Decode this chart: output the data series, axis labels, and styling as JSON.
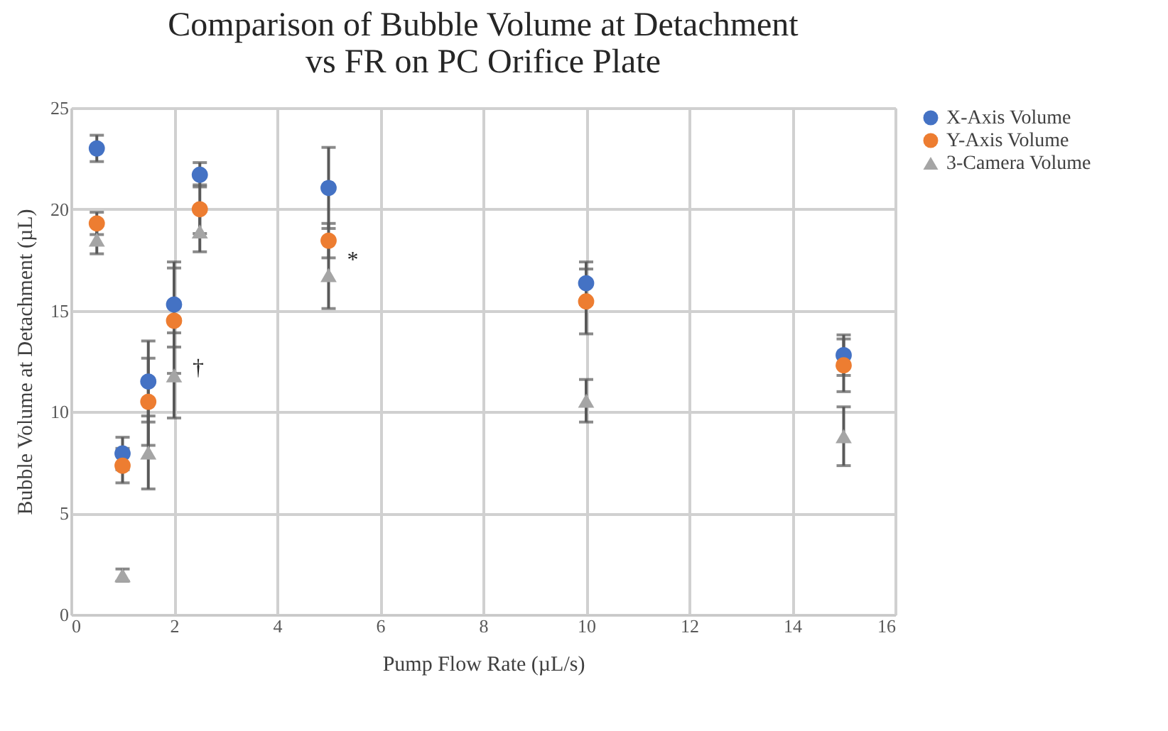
{
  "chart_data": {
    "type": "scatter",
    "title": "Comparison of Bubble Volume at Detachment vs FR on PC Orifice Plate",
    "xlabel": "Pump Flow Rate (µL/s)",
    "ylabel": "Bubble Volume at Detachment (µL)",
    "x": [
      0.5,
      1,
      1.5,
      2,
      2.5,
      5,
      10,
      15
    ],
    "series": [
      {
        "name": "X-Axis Volume",
        "color": "#4472c4",
        "marker": "circle",
        "values": [
          23.0,
          7.95,
          11.5,
          15.3,
          21.7,
          21.05,
          16.35,
          12.8
        ],
        "errors": [
          0.65,
          0.8,
          2.0,
          2.1,
          0.6,
          2.0,
          1.05,
          1.0
        ]
      },
      {
        "name": "Y-Axis Volume",
        "color": "#ed7d31",
        "marker": "circle",
        "values": [
          19.3,
          7.35,
          10.5,
          14.5,
          20.0,
          18.45,
          15.45,
          12.3
        ],
        "errors": [
          0.55,
          0.85,
          2.15,
          2.6,
          1.2,
          0.85,
          1.6,
          1.3
        ]
      },
      {
        "name": "3-Camera Volume",
        "color": "#a5a5a5",
        "marker": "triangle",
        "values": [
          18.5,
          1.95,
          8.0,
          11.8,
          18.9,
          16.75,
          10.55,
          8.8
        ],
        "errors": [
          0.7,
          0.3,
          1.8,
          2.1,
          1.0,
          1.65,
          1.05,
          1.45
        ]
      }
    ],
    "xlim": [
      0,
      16
    ],
    "xticks": [
      0,
      2,
      4,
      6,
      8,
      10,
      12,
      14,
      16
    ],
    "ylim": [
      0,
      25
    ],
    "yticks": [
      0,
      5,
      10,
      15,
      20,
      25
    ],
    "grid": true,
    "legend": "right",
    "annotations": [
      {
        "text": "*",
        "x": 5,
        "y": 17.5
      },
      {
        "text": "†",
        "x": 2,
        "y": 12.2
      }
    ]
  }
}
